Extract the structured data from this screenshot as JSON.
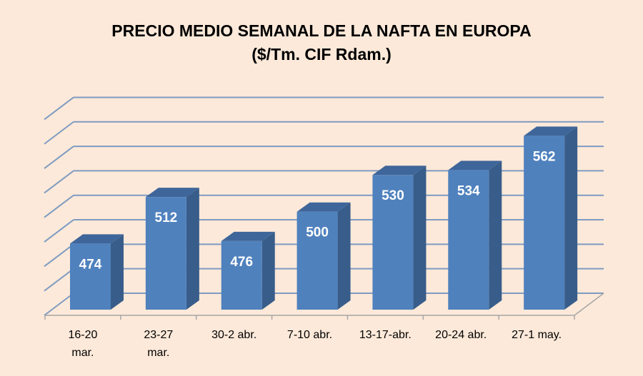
{
  "chart_data": {
    "type": "bar",
    "title": "PRECIO MEDIO SEMANAL DE LA NAFTA EN EUROPA",
    "subtitle": "($/Tm. CIF Rdam.)",
    "categories": [
      [
        "16-20",
        "mar."
      ],
      [
        "23-27",
        "mar."
      ],
      [
        "30-2 abr."
      ],
      [
        "7-10 abr."
      ],
      [
        "13-17-abr."
      ],
      [
        "20-24 abr."
      ],
      [
        "27-1 may."
      ]
    ],
    "values": [
      474,
      512,
      476,
      500,
      530,
      534,
      562
    ],
    "data_labels": [
      "474",
      "512",
      "476",
      "500",
      "530",
      "534",
      "562"
    ],
    "xlabel": "",
    "ylabel": "",
    "ylim": [
      420,
      580
    ],
    "ystep": 20,
    "grid": true,
    "legend": "none",
    "colors": {
      "front": "#4F81BD",
      "side": "#385D8A",
      "top": "#3F669A",
      "grid": "#7E9BC2",
      "floor": "#A6A6A6",
      "background": "#FDE9D9"
    }
  }
}
